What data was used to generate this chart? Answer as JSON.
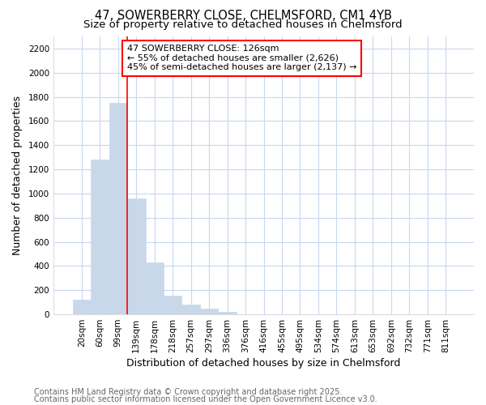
{
  "title_line1": "47, SOWERBERRY CLOSE, CHELMSFORD, CM1 4YB",
  "title_line2": "Size of property relative to detached houses in Chelmsford",
  "xlabel": "Distribution of detached houses by size in Chelmsford",
  "ylabel": "Number of detached properties",
  "categories": [
    "20sqm",
    "60sqm",
    "99sqm",
    "139sqm",
    "178sqm",
    "218sqm",
    "257sqm",
    "297sqm",
    "336sqm",
    "376sqm",
    "416sqm",
    "455sqm",
    "495sqm",
    "534sqm",
    "574sqm",
    "613sqm",
    "653sqm",
    "692sqm",
    "732sqm",
    "771sqm",
    "811sqm"
  ],
  "values": [
    120,
    1280,
    1750,
    960,
    430,
    155,
    80,
    45,
    20,
    0,
    0,
    0,
    0,
    0,
    0,
    0,
    0,
    0,
    0,
    0,
    0
  ],
  "bar_color": "#c8d8ea",
  "bar_edge_color": "#a0b8d0",
  "vline_x": 2.5,
  "vline_color": "red",
  "ylim": [
    0,
    2300
  ],
  "yticks": [
    0,
    200,
    400,
    600,
    800,
    1000,
    1200,
    1400,
    1600,
    1800,
    2000,
    2200
  ],
  "annotation_text": "47 SOWERBERRY CLOSE: 126sqm\n← 55% of detached houses are smaller (2,626)\n45% of semi-detached houses are larger (2,137) →",
  "annotation_box_color": "white",
  "annotation_box_edge": "red",
  "footer_line1": "Contains HM Land Registry data © Crown copyright and database right 2025.",
  "footer_line2": "Contains public sector information licensed under the Open Government Licence v3.0.",
  "bg_color": "#ffffff",
  "grid_color": "#c8d8f0",
  "title_fontsize": 10.5,
  "subtitle_fontsize": 9.5,
  "axis_label_fontsize": 9,
  "tick_fontsize": 7.5,
  "annotation_fontsize": 8,
  "footer_fontsize": 7
}
